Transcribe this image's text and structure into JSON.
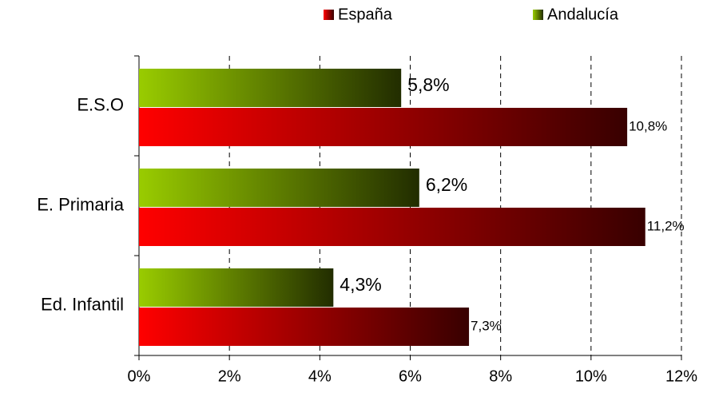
{
  "chart_data": {
    "type": "barh",
    "categories": [
      "E.S.O",
      "E. Primaria",
      "Ed. Infantil"
    ],
    "series": [
      {
        "name": "España",
        "color": "#ff0000",
        "values": [
          10.8,
          11.2,
          7.3
        ],
        "value_labels": [
          "10,8%",
          "11,2%",
          "7,3%"
        ]
      },
      {
        "name": "Andalucía",
        "color": "#99cc00",
        "values": [
          5.8,
          6.2,
          4.3
        ],
        "value_labels": [
          "5,8%",
          "6,2%",
          "4,3%"
        ]
      }
    ],
    "xlim": [
      0,
      12
    ],
    "xticks": [
      {
        "value": 0,
        "label": "0%"
      },
      {
        "value": 2,
        "label": "2%"
      },
      {
        "value": 4,
        "label": "4%"
      },
      {
        "value": 6,
        "label": "6%"
      },
      {
        "value": 8,
        "label": "8%"
      },
      {
        "value": 10,
        "label": "10%"
      },
      {
        "value": 12,
        "label": "12%"
      }
    ],
    "grid": true,
    "legend": "top"
  }
}
